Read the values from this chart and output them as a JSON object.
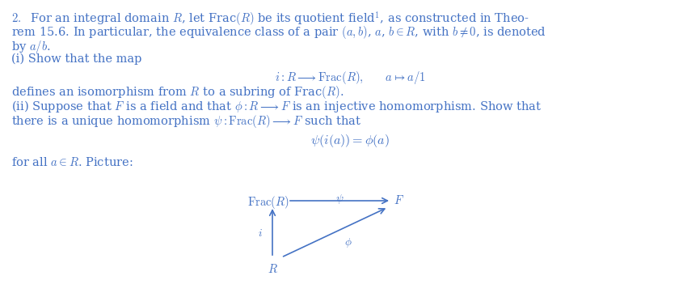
{
  "background_color": "#ffffff",
  "text_color": "#4472c4",
  "fig_width": 8.66,
  "fig_height": 3.62,
  "dpi": 100
}
